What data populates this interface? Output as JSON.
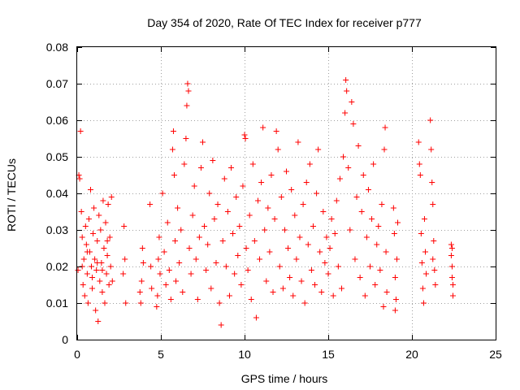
{
  "chart_data": {
    "type": "scatter",
    "title": "Day 354 of 2020, Rate Of TEC Index for receiver p777",
    "xlabel": "GPS time / hours",
    "ylabel": "ROTI / TECUs",
    "xlim": [
      0,
      25
    ],
    "ylim": [
      0,
      0.08
    ],
    "xticks": [
      0,
      5,
      10,
      15,
      20,
      25
    ],
    "xtick_labels": [
      "0",
      "5",
      "10",
      "15",
      "20",
      "25"
    ],
    "yticks": [
      0,
      0.01,
      0.02,
      0.03,
      0.04,
      0.05,
      0.06,
      0.07,
      0.08
    ],
    "ytick_labels": [
      "0",
      "0.01",
      "0.02",
      "0.03",
      "0.04",
      "0.05",
      "0.06",
      "0.07",
      "0.08"
    ],
    "grid": true,
    "marker": "plus",
    "marker_color": "#ff0000",
    "series": [
      {
        "points": [
          [
            0.05,
            0.019
          ],
          [
            0.1,
            0.045
          ],
          [
            0.15,
            0.044
          ],
          [
            0.2,
            0.057
          ],
          [
            0.25,
            0.035
          ],
          [
            0.3,
            0.028
          ],
          [
            0.35,
            0.015
          ],
          [
            0.4,
            0.022
          ],
          [
            0.45,
            0.012
          ],
          [
            0.5,
            0.031
          ],
          [
            0.55,
            0.026
          ],
          [
            0.6,
            0.018
          ],
          [
            0.65,
            0.01
          ],
          [
            0.7,
            0.033
          ],
          [
            0.75,
            0.024
          ],
          [
            0.8,
            0.041
          ],
          [
            0.85,
            0.02
          ],
          [
            0.9,
            0.014
          ],
          [
            0.95,
            0.029
          ],
          [
            1.0,
            0.036
          ],
          [
            1.05,
            0.022
          ],
          [
            1.1,
            0.008
          ],
          [
            1.15,
            0.019
          ],
          [
            1.2,
            0.027
          ],
          [
            1.25,
            0.005
          ],
          [
            1.3,
            0.034
          ],
          [
            1.35,
            0.016
          ],
          [
            1.4,
            0.03
          ],
          [
            1.45,
            0.021
          ],
          [
            1.5,
            0.013
          ],
          [
            1.55,
            0.038
          ],
          [
            1.6,
            0.025
          ],
          [
            1.65,
            0.01
          ],
          [
            1.7,
            0.032
          ],
          [
            1.75,
            0.018
          ],
          [
            1.8,
            0.023
          ],
          [
            1.85,
            0.037
          ],
          [
            1.9,
            0.015
          ],
          [
            1.95,
            0.028
          ],
          [
            2.0,
            0.02
          ],
          [
            0.3,
            0.02
          ],
          [
            0.6,
            0.024
          ],
          [
            0.9,
            0.017
          ],
          [
            1.2,
            0.021
          ],
          [
            1.5,
            0.019
          ],
          [
            1.8,
            0.027
          ],
          [
            2.05,
            0.039
          ],
          [
            2.1,
            0.016
          ],
          [
            2.8,
            0.031
          ],
          [
            2.85,
            0.022
          ],
          [
            2.9,
            0.01
          ],
          [
            2.75,
            0.018
          ],
          [
            3.75,
            0.013
          ],
          [
            3.8,
            0.01
          ],
          [
            3.85,
            0.016
          ],
          [
            3.9,
            0.025
          ],
          [
            3.95,
            0.021
          ],
          [
            4.35,
            0.037
          ],
          [
            4.4,
            0.02
          ],
          [
            4.45,
            0.014
          ],
          [
            4.75,
            0.009
          ],
          [
            4.8,
            0.012
          ],
          [
            4.85,
            0.022
          ],
          [
            4.9,
            0.028
          ],
          [
            4.95,
            0.018
          ],
          [
            5.1,
            0.04
          ],
          [
            5.2,
            0.024
          ],
          [
            5.3,
            0.015
          ],
          [
            5.4,
            0.032
          ],
          [
            5.5,
            0.019
          ],
          [
            5.6,
            0.011
          ],
          [
            5.7,
            0.052
          ],
          [
            5.75,
            0.057
          ],
          [
            5.8,
            0.045
          ],
          [
            5.85,
            0.027
          ],
          [
            5.9,
            0.016
          ],
          [
            6.0,
            0.036
          ],
          [
            6.1,
            0.021
          ],
          [
            6.2,
            0.03
          ],
          [
            6.3,
            0.013
          ],
          [
            6.4,
            0.048
          ],
          [
            6.5,
            0.055
          ],
          [
            6.55,
            0.064
          ],
          [
            6.6,
            0.07
          ],
          [
            6.65,
            0.068
          ],
          [
            6.7,
            0.025
          ],
          [
            6.8,
            0.018
          ],
          [
            6.9,
            0.034
          ],
          [
            7.0,
            0.042
          ],
          [
            7.1,
            0.022
          ],
          [
            7.2,
            0.011
          ],
          [
            7.3,
            0.028
          ],
          [
            7.4,
            0.047
          ],
          [
            7.5,
            0.054
          ],
          [
            7.6,
            0.031
          ],
          [
            7.7,
            0.019
          ],
          [
            7.8,
            0.026
          ],
          [
            7.9,
            0.04
          ],
          [
            8.0,
            0.014
          ],
          [
            8.1,
            0.049
          ],
          [
            8.2,
            0.033
          ],
          [
            8.3,
            0.021
          ],
          [
            8.4,
            0.037
          ],
          [
            8.5,
            0.01
          ],
          [
            8.6,
            0.004
          ],
          [
            8.7,
            0.027
          ],
          [
            8.8,
            0.044
          ],
          [
            8.9,
            0.02
          ],
          [
            9.0,
            0.035
          ],
          [
            9.1,
            0.012
          ],
          [
            9.2,
            0.047
          ],
          [
            9.3,
            0.029
          ],
          [
            9.4,
            0.018
          ],
          [
            9.5,
            0.039
          ],
          [
            9.6,
            0.023
          ],
          [
            9.7,
            0.031
          ],
          [
            9.8,
            0.015
          ],
          [
            9.9,
            0.042
          ],
          [
            10.0,
            0.056
          ],
          [
            10.05,
            0.055
          ],
          [
            10.1,
            0.025
          ],
          [
            10.2,
            0.019
          ],
          [
            10.3,
            0.034
          ],
          [
            10.4,
            0.011
          ],
          [
            10.5,
            0.048
          ],
          [
            10.6,
            0.027
          ],
          [
            10.7,
            0.006
          ],
          [
            10.8,
            0.038
          ],
          [
            10.9,
            0.022
          ],
          [
            11.0,
            0.043
          ],
          [
            11.1,
            0.058
          ],
          [
            11.2,
            0.03
          ],
          [
            11.3,
            0.016
          ],
          [
            11.4,
            0.036
          ],
          [
            11.5,
            0.024
          ],
          [
            11.6,
            0.045
          ],
          [
            11.7,
            0.013
          ],
          [
            11.8,
            0.033
          ],
          [
            11.9,
            0.057
          ],
          [
            12.0,
            0.052
          ],
          [
            12.1,
            0.02
          ],
          [
            12.2,
            0.039
          ],
          [
            12.3,
            0.014
          ],
          [
            12.4,
            0.03
          ],
          [
            12.5,
            0.046
          ],
          [
            12.6,
            0.025
          ],
          [
            12.7,
            0.017
          ],
          [
            12.8,
            0.041
          ],
          [
            12.9,
            0.012
          ],
          [
            13.0,
            0.034
          ],
          [
            13.1,
            0.022
          ],
          [
            13.2,
            0.054
          ],
          [
            13.3,
            0.028
          ],
          [
            13.4,
            0.016
          ],
          [
            13.5,
            0.037
          ],
          [
            13.6,
            0.01
          ],
          [
            13.7,
            0.043
          ],
          [
            13.8,
            0.026
          ],
          [
            13.9,
            0.048
          ],
          [
            14.0,
            0.019
          ],
          [
            14.1,
            0.031
          ],
          [
            14.2,
            0.015
          ],
          [
            14.3,
            0.04
          ],
          [
            14.4,
            0.052
          ],
          [
            14.5,
            0.024
          ],
          [
            14.6,
            0.013
          ],
          [
            14.7,
            0.035
          ],
          [
            14.8,
            0.021
          ],
          [
            14.9,
            0.028
          ],
          [
            15.0,
            0.018
          ],
          [
            15.1,
            0.025
          ],
          [
            15.2,
            0.033
          ],
          [
            15.3,
            0.012
          ],
          [
            15.4,
            0.029
          ],
          [
            15.5,
            0.038
          ],
          [
            15.6,
            0.02
          ],
          [
            15.7,
            0.044
          ],
          [
            15.8,
            0.014
          ],
          [
            15.9,
            0.05
          ],
          [
            16.0,
            0.062
          ],
          [
            16.05,
            0.071
          ],
          [
            16.1,
            0.068
          ],
          [
            16.2,
            0.047
          ],
          [
            16.3,
            0.03
          ],
          [
            16.4,
            0.065
          ],
          [
            16.5,
            0.059
          ],
          [
            16.6,
            0.022
          ],
          [
            16.7,
            0.039
          ],
          [
            16.8,
            0.053
          ],
          [
            16.9,
            0.017
          ],
          [
            17.0,
            0.035
          ],
          [
            17.1,
            0.045
          ],
          [
            17.2,
            0.012
          ],
          [
            17.3,
            0.028
          ],
          [
            17.4,
            0.041
          ],
          [
            17.5,
            0.02
          ],
          [
            17.6,
            0.033
          ],
          [
            17.7,
            0.048
          ],
          [
            17.8,
            0.015
          ],
          [
            17.9,
            0.026
          ],
          [
            18.0,
            0.031
          ],
          [
            18.1,
            0.019
          ],
          [
            18.2,
            0.037
          ],
          [
            18.3,
            0.009
          ],
          [
            18.35,
            0.052
          ],
          [
            18.4,
            0.058
          ],
          [
            18.45,
            0.024
          ],
          [
            18.5,
            0.013
          ],
          [
            18.9,
            0.036
          ],
          [
            18.95,
            0.029
          ],
          [
            19.0,
            0.017
          ],
          [
            19.05,
            0.011
          ],
          [
            19.1,
            0.022
          ],
          [
            19.15,
            0.032
          ],
          [
            19.0,
            0.008
          ],
          [
            20.4,
            0.054
          ],
          [
            20.45,
            0.048
          ],
          [
            20.5,
            0.045
          ],
          [
            20.55,
            0.029
          ],
          [
            20.6,
            0.021
          ],
          [
            20.65,
            0.014
          ],
          [
            20.7,
            0.01
          ],
          [
            20.75,
            0.033
          ],
          [
            20.8,
            0.024
          ],
          [
            20.85,
            0.018
          ],
          [
            21.1,
            0.06
          ],
          [
            21.15,
            0.052
          ],
          [
            21.2,
            0.043
          ],
          [
            21.25,
            0.037
          ],
          [
            21.3,
            0.027
          ],
          [
            21.35,
            0.019
          ],
          [
            21.4,
            0.015
          ],
          [
            21.25,
            0.022
          ],
          [
            22.35,
            0.026
          ],
          [
            22.35,
            0.023
          ],
          [
            22.4,
            0.02
          ],
          [
            22.4,
            0.017
          ],
          [
            22.45,
            0.015
          ],
          [
            22.45,
            0.012
          ],
          [
            22.4,
            0.025
          ]
        ]
      }
    ]
  }
}
